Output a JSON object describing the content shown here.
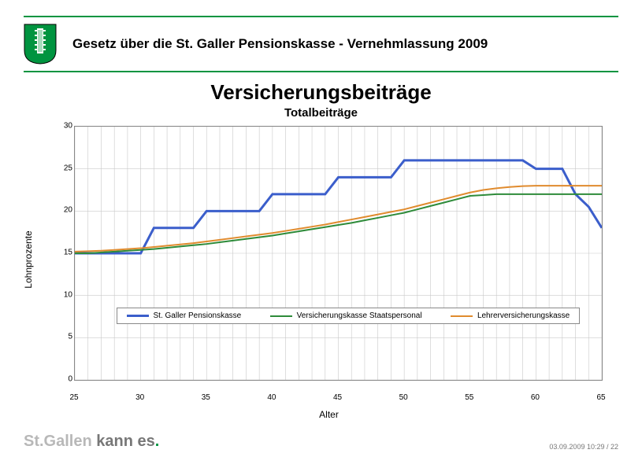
{
  "header": {
    "title": "Gesetz über die St. Galler Pensionskasse - Vernehmlassung 2009",
    "rule_color": "#009440",
    "crest": {
      "bg": "#009440",
      "stroke": "#ffffff"
    }
  },
  "main_title": "Versicherungsbeiträge",
  "chart": {
    "type": "line",
    "title": "Totalbeiträge",
    "xlabel": "Alter",
    "ylabel": "Lohnprozente",
    "xlim": [
      25,
      65
    ],
    "ylim": [
      0,
      30
    ],
    "xticks": [
      25,
      30,
      35,
      40,
      45,
      50,
      55,
      60,
      65
    ],
    "yticks": [
      0,
      5,
      10,
      15,
      20,
      25,
      30
    ],
    "grid_color": "#c9c9c9",
    "background_color": "#ffffff",
    "legend_y_value": 7.5,
    "series": [
      {
        "name": "St. Galler Pensionskasse",
        "color": "#3b5ecb",
        "width": 3,
        "x": [
          25,
          26,
          27,
          28,
          29,
          30,
          31,
          32,
          33,
          34,
          35,
          36,
          37,
          38,
          39,
          40,
          41,
          42,
          43,
          44,
          45,
          46,
          47,
          48,
          49,
          50,
          51,
          52,
          53,
          54,
          55,
          56,
          57,
          58,
          59,
          60,
          61,
          62,
          63,
          64,
          65
        ],
        "y": [
          15.0,
          15.0,
          15.0,
          15.0,
          15.0,
          15.0,
          18.0,
          18.0,
          18.0,
          18.0,
          20.0,
          20.0,
          20.0,
          20.0,
          20.0,
          22.0,
          22.0,
          22.0,
          22.0,
          22.0,
          24.0,
          24.0,
          24.0,
          24.0,
          24.0,
          26.0,
          26.0,
          26.0,
          26.0,
          26.0,
          26.0,
          26.0,
          26.0,
          26.0,
          26.0,
          25.0,
          25.0,
          25.0,
          22.0,
          20.5,
          18.0
        ]
      },
      {
        "name": "Versicherungskasse Staatspersonal",
        "color": "#2e8b3a",
        "width": 2,
        "x": [
          25,
          26,
          27,
          28,
          29,
          30,
          31,
          32,
          33,
          34,
          35,
          36,
          37,
          38,
          39,
          40,
          41,
          42,
          43,
          44,
          45,
          46,
          47,
          48,
          49,
          50,
          51,
          52,
          53,
          54,
          55,
          56,
          57,
          58,
          59,
          60,
          61,
          62,
          63,
          64,
          65
        ],
        "y": [
          15.0,
          15.0,
          15.1,
          15.2,
          15.3,
          15.4,
          15.5,
          15.65,
          15.8,
          15.95,
          16.1,
          16.3,
          16.5,
          16.7,
          16.9,
          17.1,
          17.35,
          17.6,
          17.85,
          18.1,
          18.35,
          18.6,
          18.9,
          19.2,
          19.5,
          19.8,
          20.2,
          20.6,
          21.0,
          21.4,
          21.8,
          21.9,
          22.0,
          22.0,
          22.0,
          22.0,
          22.0,
          22.0,
          22.0,
          22.0,
          22.0
        ]
      },
      {
        "name": "Lehrerversicherungskasse",
        "color": "#e08b2e",
        "width": 2,
        "x": [
          25,
          26,
          27,
          28,
          29,
          30,
          31,
          32,
          33,
          34,
          35,
          36,
          37,
          38,
          39,
          40,
          41,
          42,
          43,
          44,
          45,
          46,
          47,
          48,
          49,
          50,
          51,
          52,
          53,
          54,
          55,
          56,
          57,
          58,
          59,
          60,
          61,
          62,
          63,
          64,
          65
        ],
        "y": [
          15.2,
          15.25,
          15.3,
          15.4,
          15.5,
          15.6,
          15.75,
          15.9,
          16.05,
          16.2,
          16.4,
          16.6,
          16.8,
          17.0,
          17.2,
          17.4,
          17.65,
          17.9,
          18.15,
          18.4,
          18.7,
          19.0,
          19.3,
          19.6,
          19.9,
          20.2,
          20.6,
          21.0,
          21.4,
          21.8,
          22.2,
          22.5,
          22.7,
          22.85,
          22.95,
          23.0,
          23.0,
          23.0,
          23.0,
          23.0,
          23.0
        ]
      }
    ]
  },
  "footer": {
    "brand_part1": "St.Gallen ",
    "brand_part2": "kann es",
    "brand_dot": ".",
    "meta": "03.09.2009 10:29 / 22"
  }
}
